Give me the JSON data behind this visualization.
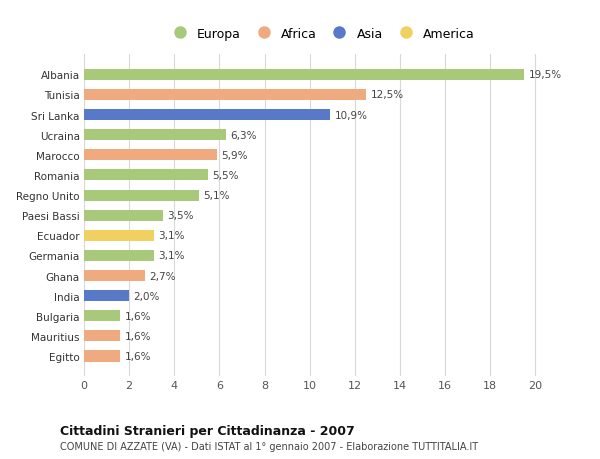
{
  "countries": [
    "Albania",
    "Tunisia",
    "Sri Lanka",
    "Ucraina",
    "Marocco",
    "Romania",
    "Regno Unito",
    "Paesi Bassi",
    "Ecuador",
    "Germania",
    "Ghana",
    "India",
    "Bulgaria",
    "Mauritius",
    "Egitto"
  ],
  "values": [
    19.5,
    12.5,
    10.9,
    6.3,
    5.9,
    5.5,
    5.1,
    3.5,
    3.1,
    3.1,
    2.7,
    2.0,
    1.6,
    1.6,
    1.6
  ],
  "labels": [
    "19,5%",
    "12,5%",
    "10,9%",
    "6,3%",
    "5,9%",
    "5,5%",
    "5,1%",
    "3,5%",
    "3,1%",
    "3,1%",
    "2,7%",
    "2,0%",
    "1,6%",
    "1,6%",
    "1,6%"
  ],
  "continents": [
    "Europa",
    "Africa",
    "Asia",
    "Europa",
    "Africa",
    "Europa",
    "Europa",
    "Europa",
    "America",
    "Europa",
    "Africa",
    "Asia",
    "Europa",
    "Africa",
    "Africa"
  ],
  "colors": {
    "Europa": "#a8c87a",
    "Africa": "#f0aa80",
    "Asia": "#5878c8",
    "America": "#f0d060"
  },
  "legend_order": [
    "Europa",
    "Africa",
    "Asia",
    "America"
  ],
  "title": "Cittadini Stranieri per Cittadinanza - 2007",
  "subtitle": "COMUNE DI AZZATE (VA) - Dati ISTAT al 1° gennaio 2007 - Elaborazione TUTTITALIA.IT",
  "xlim": [
    0,
    21
  ],
  "xticks": [
    0,
    2,
    4,
    6,
    8,
    10,
    12,
    14,
    16,
    18,
    20
  ],
  "background_color": "#ffffff",
  "grid_color": "#d8d8d8"
}
